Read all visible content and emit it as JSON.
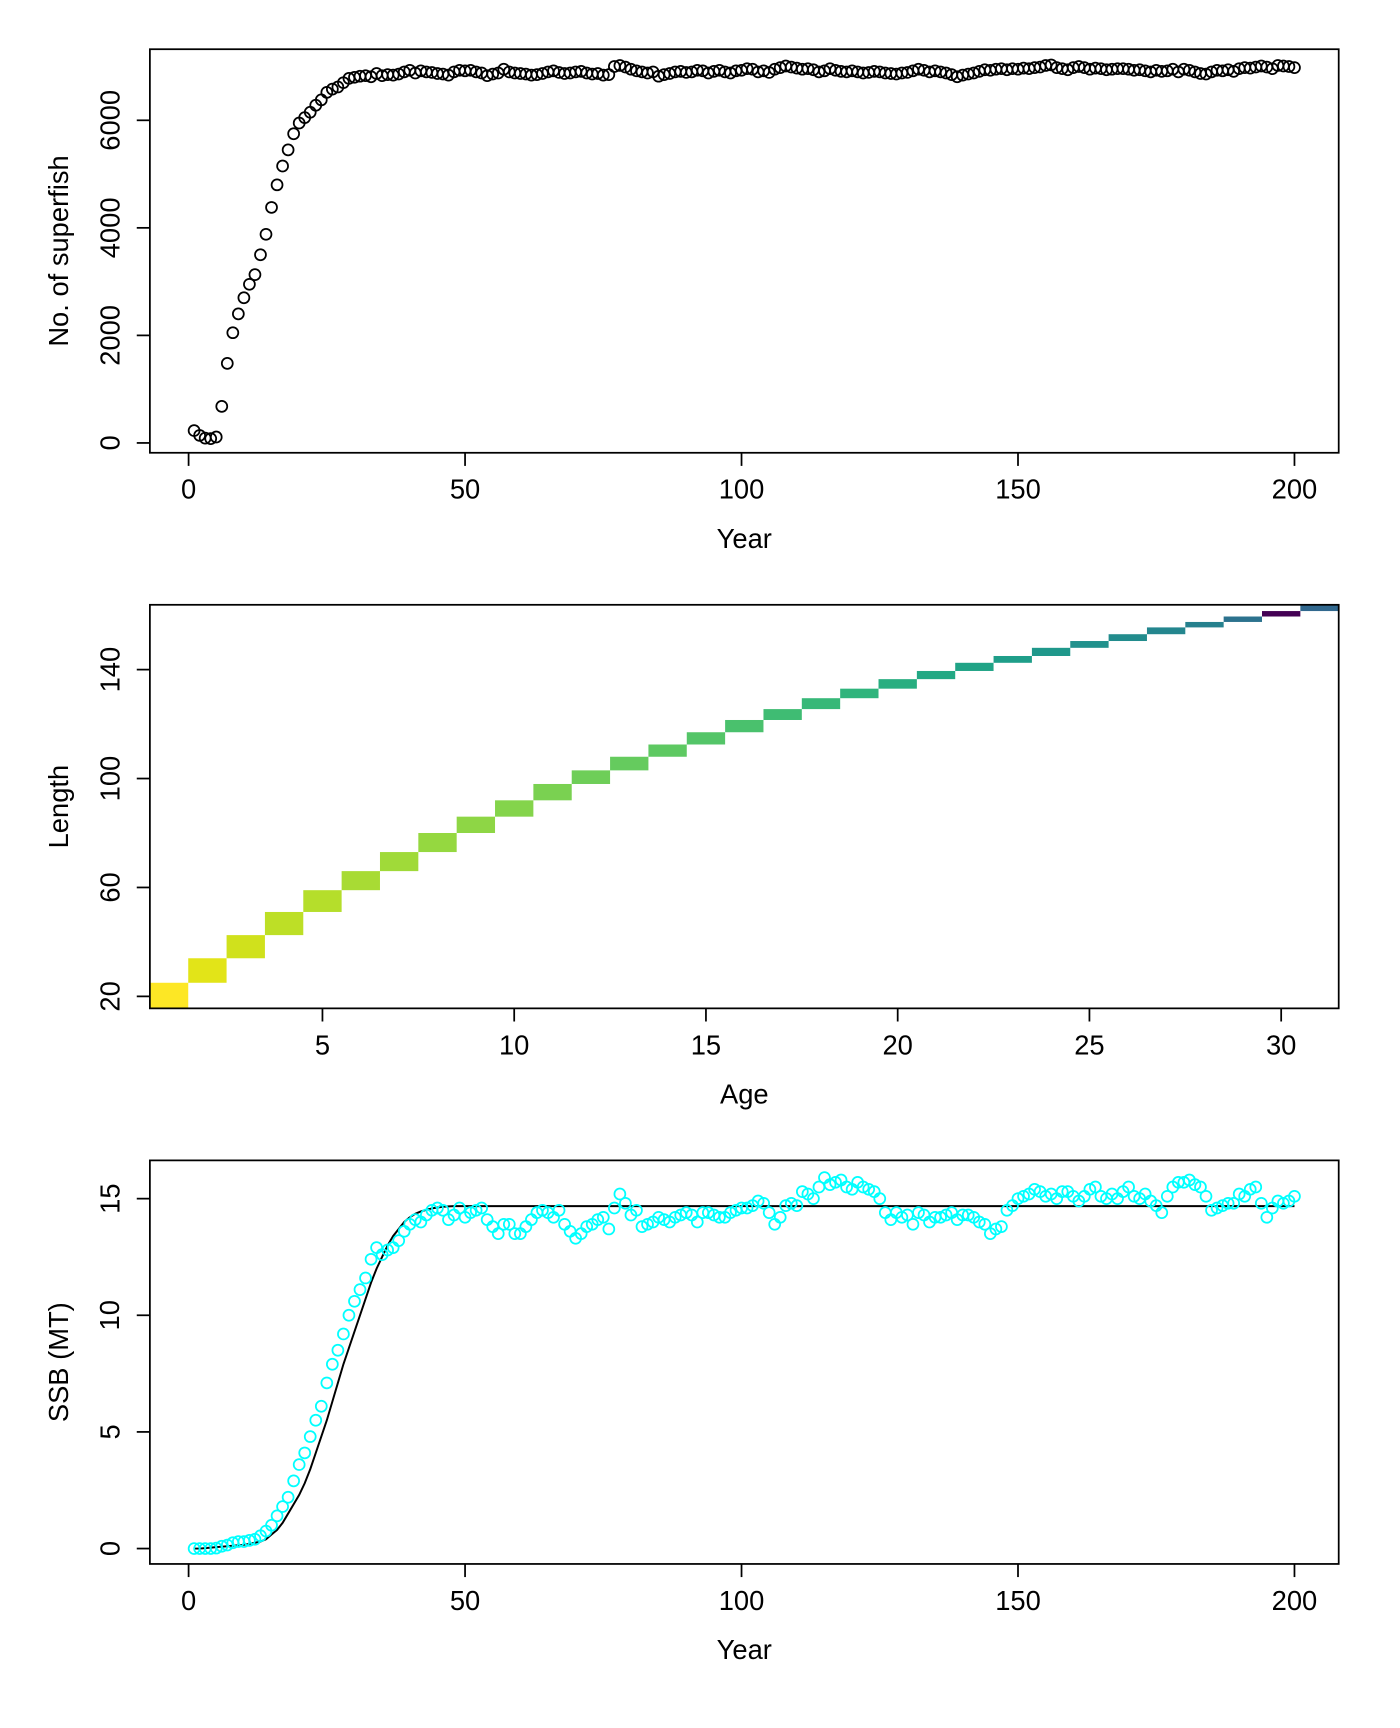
{
  "chart_data": [
    {
      "type": "scatter",
      "x_label": "Year",
      "y_label": "No. of superfish",
      "color": "#000000",
      "xlim": [
        -7,
        208
      ],
      "ylim": [
        -183,
        7322
      ],
      "xticks": [
        0,
        50,
        100,
        150,
        200
      ],
      "yticks": [
        0,
        2000,
        4000,
        6000
      ],
      "x": [
        1,
        2,
        3,
        4,
        5,
        6,
        7,
        8,
        9,
        10,
        11,
        12,
        13,
        14,
        15,
        16,
        17,
        18,
        19,
        20,
        21,
        22,
        23,
        24,
        25,
        26,
        27,
        28,
        29,
        30,
        31,
        32,
        33,
        34,
        35,
        36,
        37,
        38,
        39,
        40,
        41,
        42,
        43,
        44,
        45,
        46,
        47,
        48,
        49,
        50,
        51,
        52,
        53,
        54,
        55,
        56,
        57,
        58,
        59,
        60,
        61,
        62,
        63,
        64,
        65,
        66,
        67,
        68,
        69,
        70,
        71,
        72,
        73,
        74,
        75,
        76,
        77,
        78,
        79,
        80,
        81,
        82,
        83,
        84,
        85,
        86,
        87,
        88,
        89,
        90,
        91,
        92,
        93,
        94,
        95,
        96,
        97,
        98,
        99,
        100,
        101,
        102,
        103,
        104,
        105,
        106,
        107,
        108,
        109,
        110,
        111,
        112,
        113,
        114,
        115,
        116,
        117,
        118,
        119,
        120,
        121,
        122,
        123,
        124,
        125,
        126,
        127,
        128,
        129,
        130,
        131,
        132,
        133,
        134,
        135,
        136,
        137,
        138,
        139,
        140,
        141,
        142,
        143,
        144,
        145,
        146,
        147,
        148,
        149,
        150,
        151,
        152,
        153,
        154,
        155,
        156,
        157,
        158,
        159,
        160,
        161,
        162,
        163,
        164,
        165,
        166,
        167,
        168,
        169,
        170,
        171,
        172,
        173,
        174,
        175,
        176,
        177,
        178,
        179,
        180,
        181,
        182,
        183,
        184,
        185,
        186,
        187,
        188,
        189,
        190,
        191,
        192,
        193,
        194,
        195,
        196,
        197,
        198,
        199,
        200
      ],
      "values": [
        230,
        140,
        90,
        80,
        110,
        680,
        1480,
        2050,
        2400,
        2700,
        2950,
        3130,
        3500,
        3880,
        4380,
        4800,
        5150,
        5450,
        5750,
        5950,
        6050,
        6150,
        6280,
        6380,
        6520,
        6580,
        6620,
        6700,
        6780,
        6800,
        6820,
        6830,
        6810,
        6870,
        6830,
        6850,
        6840,
        6860,
        6900,
        6930,
        6880,
        6920,
        6900,
        6890,
        6870,
        6860,
        6840,
        6900,
        6930,
        6920,
        6930,
        6900,
        6880,
        6830,
        6860,
        6880,
        6950,
        6900,
        6880,
        6870,
        6860,
        6840,
        6850,
        6870,
        6900,
        6920,
        6890,
        6870,
        6880,
        6900,
        6910,
        6880,
        6860,
        6870,
        6840,
        6850,
        7000,
        7020,
        6990,
        6950,
        6920,
        6900,
        6880,
        6900,
        6820,
        6850,
        6870,
        6900,
        6910,
        6890,
        6900,
        6930,
        6920,
        6880,
        6910,
        6930,
        6900,
        6880,
        6920,
        6930,
        6960,
        6950,
        6900,
        6920,
        6890,
        6950,
        6980,
        7010,
        6990,
        6970,
        6950,
        6960,
        6940,
        6900,
        6920,
        6960,
        6930,
        6910,
        6900,
        6920,
        6900,
        6880,
        6890,
        6910,
        6900,
        6880,
        6870,
        6860,
        6880,
        6890,
        6920,
        6950,
        6930,
        6900,
        6920,
        6900,
        6880,
        6850,
        6810,
        6840,
        6860,
        6880,
        6910,
        6940,
        6930,
        6950,
        6960,
        6940,
        6960,
        6950,
        6970,
        6960,
        6980,
        6990,
        7020,
        7030,
        6980,
        6960,
        6940,
        6980,
        7000,
        6980,
        6950,
        6970,
        6960,
        6940,
        6950,
        6960,
        6960,
        6950,
        6930,
        6940,
        6920,
        6900,
        6930,
        6910,
        6920,
        6950,
        6900,
        6950,
        6930,
        6900,
        6870,
        6860,
        6900,
        6930,
        6920,
        6940,
        6910,
        6960,
        6980,
        6970,
        6990,
        7010,
        6990,
        6960,
        7020,
        7010,
        7000,
        6980
      ]
    },
    {
      "type": "heatmap",
      "x_label": "Age",
      "y_label": "Length",
      "xlim": [
        0.5,
        31.5
      ],
      "ylim": [
        15.6,
        163.8
      ],
      "xticks": [
        5,
        10,
        15,
        20,
        25,
        30
      ],
      "yticks": [
        20,
        60,
        100,
        140
      ],
      "x": [
        1,
        2,
        3,
        4,
        5,
        6,
        7,
        8,
        9,
        10,
        11,
        12,
        13,
        14,
        15,
        16,
        17,
        18,
        19,
        20,
        21,
        22,
        23,
        24,
        25,
        26,
        27,
        28,
        29,
        30,
        31
      ],
      "bins": [
        15.6,
        25,
        34,
        42.5,
        51,
        59,
        66,
        73,
        80,
        86,
        92,
        98,
        103,
        108,
        112.5,
        117,
        121.5,
        125.5,
        129.5,
        133,
        136.5,
        139.5,
        142.5,
        145,
        148,
        150.5,
        153,
        155.5,
        157.5,
        159.5,
        161.5,
        163.8
      ],
      "colors": [
        "#fde725",
        "#e2e418",
        "#d0e11c",
        "#bddf26",
        "#b5de2b",
        "#a8db34",
        "#a0da39",
        "#95d840",
        "#8ed645",
        "#84d44b",
        "#7ad151",
        "#6ece58",
        "#65cb5e",
        "#5ec962",
        "#54c568",
        "#4ac16d",
        "#3fbc73",
        "#37b878",
        "#2fb47c",
        "#28ae80",
        "#22a884",
        "#20a386",
        "#1f9e89",
        "#1f988b",
        "#21918c",
        "#228c8d",
        "#24868e",
        "#26818e",
        "#2c728e",
        "#440154",
        "#31688e"
      ]
    },
    {
      "type": "scatter",
      "x_label": "Year",
      "y_label": "SSB (MT)",
      "color": "#00ffff",
      "line_color": "#000000",
      "xlim": [
        -7,
        208
      ],
      "ylim": [
        -0.66,
        16.64
      ],
      "xticks": [
        0,
        50,
        100,
        150,
        200
      ],
      "yticks": [
        0,
        5,
        10,
        15
      ],
      "x": [
        1,
        2,
        3,
        4,
        5,
        6,
        7,
        8,
        9,
        10,
        11,
        12,
        13,
        14,
        15,
        16,
        17,
        18,
        19,
        20,
        21,
        22,
        23,
        24,
        25,
        26,
        27,
        28,
        29,
        30,
        31,
        32,
        33,
        34,
        35,
        36,
        37,
        38,
        39,
        40,
        41,
        42,
        43,
        44,
        45,
        46,
        47,
        48,
        49,
        50,
        51,
        52,
        53,
        54,
        55,
        56,
        57,
        58,
        59,
        60,
        61,
        62,
        63,
        64,
        65,
        66,
        67,
        68,
        69,
        70,
        71,
        72,
        73,
        74,
        75,
        76,
        77,
        78,
        79,
        80,
        81,
        82,
        83,
        84,
        85,
        86,
        87,
        88,
        89,
        90,
        91,
        92,
        93,
        94,
        95,
        96,
        97,
        98,
        99,
        100,
        101,
        102,
        103,
        104,
        105,
        106,
        107,
        108,
        109,
        110,
        111,
        112,
        113,
        114,
        115,
        116,
        117,
        118,
        119,
        120,
        121,
        122,
        123,
        124,
        125,
        126,
        127,
        128,
        129,
        130,
        131,
        132,
        133,
        134,
        135,
        136,
        137,
        138,
        139,
        140,
        141,
        142,
        143,
        144,
        145,
        146,
        147,
        148,
        149,
        150,
        151,
        152,
        153,
        154,
        155,
        156,
        157,
        158,
        159,
        160,
        161,
        162,
        163,
        164,
        165,
        166,
        167,
        168,
        169,
        170,
        171,
        172,
        173,
        174,
        175,
        176,
        177,
        178,
        179,
        180,
        181,
        182,
        183,
        184,
        185,
        186,
        187,
        188,
        189,
        190,
        191,
        192,
        193,
        194,
        195,
        196,
        197,
        198,
        199,
        200
      ],
      "values": [
        0,
        0,
        0,
        0,
        0.02,
        0.1,
        0.15,
        0.25,
        0.3,
        0.3,
        0.35,
        0.4,
        0.55,
        0.75,
        1.0,
        1.4,
        1.8,
        2.2,
        2.9,
        3.6,
        4.1,
        4.8,
        5.5,
        6.1,
        7.1,
        7.9,
        8.5,
        9.2,
        10.0,
        10.6,
        11.1,
        11.6,
        12.4,
        12.9,
        12.6,
        12.8,
        12.9,
        13.2,
        13.6,
        13.9,
        14.1,
        14.0,
        14.3,
        14.5,
        14.6,
        14.5,
        14.1,
        14.3,
        14.6,
        14.2,
        14.4,
        14.5,
        14.6,
        14.1,
        13.8,
        13.5,
        13.9,
        13.9,
        13.5,
        13.5,
        13.8,
        14.1,
        14.4,
        14.5,
        14.4,
        14.2,
        14.5,
        13.9,
        13.6,
        13.3,
        13.5,
        13.8,
        13.9,
        14.1,
        14.2,
        13.7,
        14.6,
        15.2,
        14.8,
        14.3,
        14.5,
        13.8,
        13.9,
        14.0,
        14.2,
        14.1,
        14.0,
        14.2,
        14.3,
        14.4,
        14.3,
        14.0,
        14.4,
        14.4,
        14.3,
        14.2,
        14.2,
        14.4,
        14.5,
        14.6,
        14.6,
        14.7,
        14.9,
        14.8,
        14.4,
        13.9,
        14.2,
        14.7,
        14.8,
        14.7,
        15.3,
        15.2,
        15.0,
        15.5,
        15.9,
        15.6,
        15.7,
        15.8,
        15.5,
        15.4,
        15.7,
        15.5,
        15.4,
        15.3,
        15.0,
        14.4,
        14.1,
        14.4,
        14.2,
        14.3,
        13.9,
        14.4,
        14.3,
        14.0,
        14.2,
        14.2,
        14.3,
        14.4,
        14.1,
        14.3,
        14.3,
        14.2,
        14.0,
        13.9,
        13.5,
        13.7,
        13.8,
        14.5,
        14.7,
        15.0,
        15.1,
        15.2,
        15.4,
        15.3,
        15.1,
        15.2,
        15.0,
        15.3,
        15.3,
        15.1,
        14.9,
        15.1,
        15.4,
        15.5,
        15.1,
        15.0,
        15.2,
        15.0,
        15.3,
        15.5,
        15.1,
        15.0,
        15.2,
        14.9,
        14.7,
        14.4,
        15.1,
        15.5,
        15.7,
        15.7,
        15.8,
        15.6,
        15.5,
        15.1,
        14.5,
        14.6,
        14.7,
        14.8,
        14.8,
        15.2,
        15.1,
        15.4,
        15.5,
        14.8,
        14.2,
        14.6,
        14.9,
        14.8,
        14.9,
        15.1
      ],
      "line": [
        0,
        0,
        0.02,
        0.04,
        0.06,
        0.08,
        0.1,
        0.12,
        0.14,
        0.16,
        0.2,
        0.25,
        0.3,
        0.4,
        0.6,
        0.8,
        1.1,
        1.5,
        1.9,
        2.3,
        2.8,
        3.4,
        4.1,
        4.8,
        5.5,
        6.3,
        7.1,
        7.9,
        8.6,
        9.3,
        10.0,
        10.7,
        11.4,
        12.0,
        12.5,
        13.0,
        13.4,
        13.7,
        14.0,
        14.2,
        14.35,
        14.45,
        14.52,
        14.58,
        14.62,
        14.65,
        14.67,
        14.68,
        14.68,
        14.68,
        14.68,
        14.68,
        14.68,
        14.68,
        14.68,
        14.68,
        14.68,
        14.68,
        14.68,
        14.68,
        14.68,
        14.68,
        14.68,
        14.68,
        14.68,
        14.68,
        14.68,
        14.68,
        14.68,
        14.68,
        14.68,
        14.68,
        14.68,
        14.68,
        14.68,
        14.68,
        14.68,
        14.68,
        14.68,
        14.68,
        14.68,
        14.68,
        14.68,
        14.68,
        14.68,
        14.68,
        14.68,
        14.68,
        14.68,
        14.68,
        14.68,
        14.68,
        14.68,
        14.68,
        14.68,
        14.68,
        14.68,
        14.68,
        14.68,
        14.68,
        14.68,
        14.68,
        14.68,
        14.68,
        14.68,
        14.68,
        14.68,
        14.68,
        14.68,
        14.68,
        14.68,
        14.68,
        14.68,
        14.68,
        14.68,
        14.68,
        14.68,
        14.68,
        14.68,
        14.68,
        14.68,
        14.68,
        14.68,
        14.68,
        14.68,
        14.68,
        14.68,
        14.68,
        14.68,
        14.68,
        14.68,
        14.68,
        14.68,
        14.68,
        14.68,
        14.68,
        14.68,
        14.68,
        14.68,
        14.68,
        14.68,
        14.68,
        14.68,
        14.68,
        14.68,
        14.68,
        14.68,
        14.68,
        14.68,
        14.68,
        14.68,
        14.68,
        14.68,
        14.68,
        14.68,
        14.68,
        14.68,
        14.68,
        14.68,
        14.68,
        14.68,
        14.68,
        14.68,
        14.68,
        14.68,
        14.68,
        14.68,
        14.68,
        14.68,
        14.68,
        14.68,
        14.68,
        14.68,
        14.68,
        14.68,
        14.68,
        14.68,
        14.68,
        14.68,
        14.68,
        14.68,
        14.68,
        14.68,
        14.68,
        14.68,
        14.68,
        14.68,
        14.68,
        14.68,
        14.68,
        14.68,
        14.68,
        14.68,
        14.68,
        14.68,
        14.68,
        14.68,
        14.68,
        14.68,
        14.68,
        14.68,
        14.68
      ]
    }
  ]
}
